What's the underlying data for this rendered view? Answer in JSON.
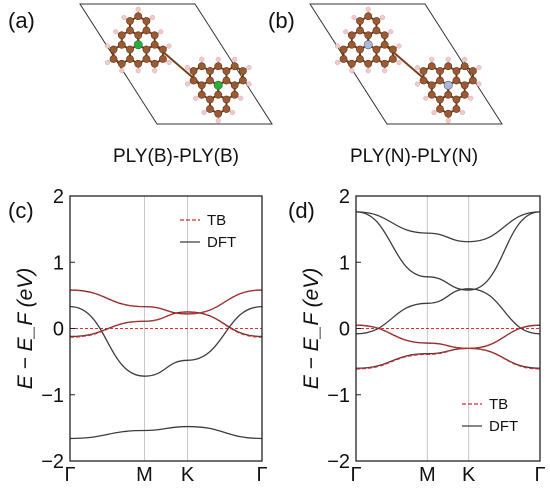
{
  "panels": {
    "a": {
      "label": "(a)",
      "caption": "PLY(B)-PLY(B)"
    },
    "b": {
      "label": "(b)",
      "caption": "PLY(N)-PLY(N)"
    },
    "c": {
      "label": "(c)"
    },
    "d": {
      "label": "(d)"
    }
  },
  "colors": {
    "carbon": "#9a5a34",
    "hydrogen": "#f4c9cc",
    "boron": "#1fb33a",
    "nitrogen": "#aab8dd",
    "tb": "#d42a2a",
    "dft": "#3d3d3d"
  },
  "chart_data": [
    {
      "type": "line",
      "panel": "c",
      "ylabel": "E − E_F (eV)",
      "ylim": [
        -2,
        2
      ],
      "yticks": [
        "2",
        "1",
        "0",
        "−1",
        "−2"
      ],
      "kpoints": [
        "Γ",
        "M",
        "K",
        "Γ"
      ],
      "kpos": [
        0,
        0.5,
        0.789,
        1.289
      ],
      "legend": {
        "placement": "top-right",
        "entries": [
          "TB",
          "DFT"
        ]
      },
      "series": [
        {
          "name": "DFT",
          "x": [
            0,
            0.5,
            0.789,
            1.289
          ],
          "y": [
            0.58,
            0.33,
            0.22,
            0.58
          ]
        },
        {
          "name": "DFT",
          "x": [
            0,
            0.5,
            0.789,
            1.289
          ],
          "y": [
            -0.12,
            0.11,
            0.25,
            -0.12
          ]
        },
        {
          "name": "DFT",
          "x": [
            0,
            0.5,
            0.789,
            1.289
          ],
          "y": [
            0.33,
            -0.72,
            -0.48,
            0.33
          ]
        },
        {
          "name": "DFT",
          "x": [
            0,
            0.5,
            0.789,
            1.289
          ],
          "y": [
            -1.66,
            -1.54,
            -1.48,
            -1.66
          ]
        },
        {
          "name": "TB",
          "x": [
            0,
            0.5,
            0.789,
            1.289
          ],
          "y": [
            0.58,
            0.33,
            0.22,
            0.58
          ]
        },
        {
          "name": "TB",
          "x": [
            0,
            0.5,
            0.789,
            1.289
          ],
          "y": [
            -0.13,
            0.11,
            0.25,
            -0.13
          ]
        }
      ]
    },
    {
      "type": "line",
      "panel": "d",
      "ylabel": "E − E_F (eV)",
      "ylim": [
        -2,
        2
      ],
      "yticks": [
        "2",
        "1",
        "0",
        "−1",
        "−2"
      ],
      "kpoints": [
        "Γ",
        "M",
        "K",
        "Γ"
      ],
      "kpos": [
        0,
        0.5,
        0.789,
        1.289
      ],
      "legend": {
        "placement": "bottom-right",
        "entries": [
          "TB",
          "DFT"
        ]
      },
      "series": [
        {
          "name": "DFT",
          "x": [
            0,
            0.5,
            0.789,
            1.289
          ],
          "y": [
            1.76,
            1.44,
            1.31,
            1.76
          ]
        },
        {
          "name": "DFT",
          "x": [
            0,
            0.5,
            0.789,
            1.289
          ],
          "y": [
            1.76,
            0.78,
            0.58,
            1.76
          ]
        },
        {
          "name": "DFT",
          "x": [
            0,
            0.5,
            0.789,
            1.289
          ],
          "y": [
            -0.08,
            0.38,
            0.6,
            -0.08
          ]
        },
        {
          "name": "DFT",
          "x": [
            0,
            0.5,
            0.789,
            1.289
          ],
          "y": [
            0.05,
            -0.22,
            -0.3,
            0.05
          ]
        },
        {
          "name": "DFT",
          "x": [
            0,
            0.5,
            0.789,
            1.289
          ],
          "y": [
            -0.6,
            -0.38,
            -0.3,
            -0.6
          ]
        },
        {
          "name": "TB",
          "x": [
            0,
            0.5,
            0.789,
            1.289
          ],
          "y": [
            0.05,
            -0.22,
            -0.3,
            0.05
          ]
        },
        {
          "name": "TB",
          "x": [
            0,
            0.5,
            0.789,
            1.289
          ],
          "y": [
            -0.61,
            -0.39,
            -0.3,
            -0.61
          ]
        }
      ]
    }
  ]
}
